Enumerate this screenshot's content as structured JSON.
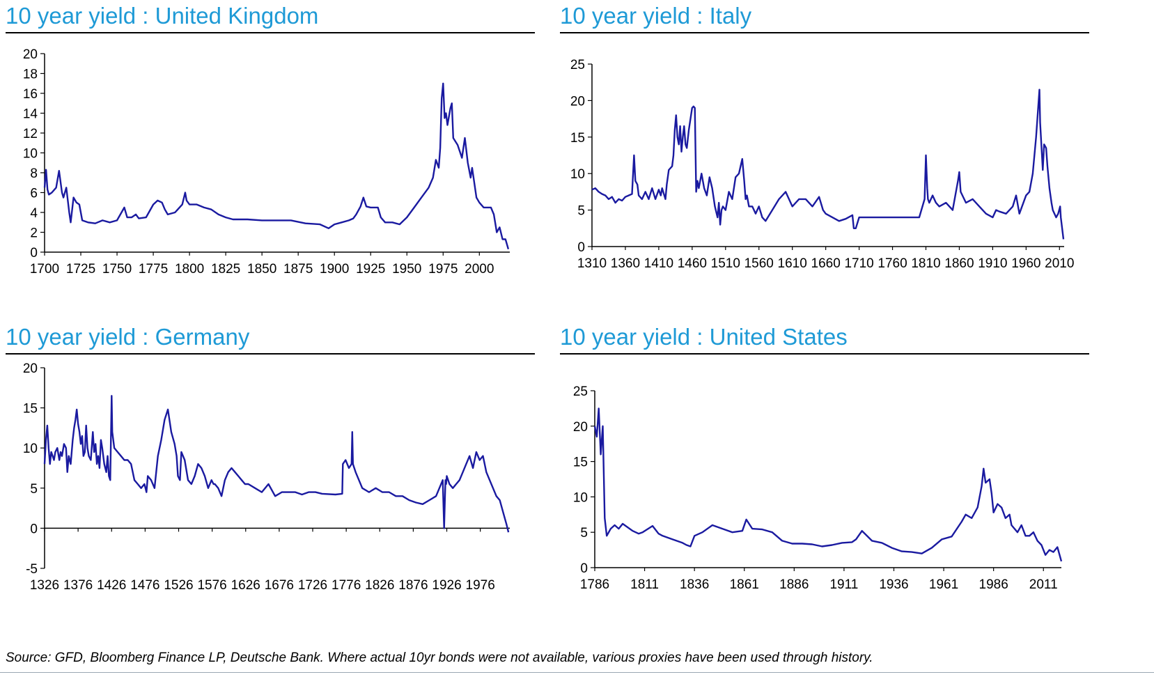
{
  "footer": {
    "source": "Source:  GFD, Bloomberg Finance LP, Deutsche Bank. Where actual 10yr bonds were not available, various proxies have been used through history."
  },
  "colors": {
    "title": "#1e9ad6",
    "line": "#1a1aa0",
    "axis": "#000000"
  },
  "chart_data": [
    {
      "type": "line",
      "title": "10 year yield : United Kingdom",
      "xlabel": "",
      "ylabel": "",
      "xlim": [
        1700,
        2021
      ],
      "ylim": [
        0,
        20
      ],
      "yticks": [
        0,
        2,
        4,
        6,
        8,
        10,
        12,
        14,
        16,
        18,
        20
      ],
      "xticks": [
        1700,
        1725,
        1750,
        1775,
        1800,
        1825,
        1850,
        1875,
        1900,
        1925,
        1950,
        1975,
        2000
      ],
      "xtick_labels": [
        "1700",
        "1725",
        "1750",
        "1775",
        "1800",
        "1825",
        "1850",
        "1875",
        "1900",
        "1925",
        "1950",
        "1975",
        "2000"
      ],
      "series": [
        {
          "x": [
            1700,
            1701,
            1702,
            1703,
            1705,
            1708,
            1710,
            1712,
            1713,
            1715,
            1717,
            1718,
            1720,
            1722,
            1724,
            1726,
            1730,
            1735,
            1740,
            1745,
            1750,
            1755,
            1757,
            1760,
            1763,
            1765,
            1770,
            1775,
            1778,
            1781,
            1783,
            1785,
            1790,
            1795,
            1797,
            1798,
            1800,
            1805,
            1810,
            1815,
            1820,
            1825,
            1830,
            1840,
            1850,
            1860,
            1870,
            1880,
            1890,
            1896,
            1900,
            1905,
            1910,
            1913,
            1915,
            1918,
            1920,
            1922,
            1925,
            1930,
            1932,
            1935,
            1940,
            1945,
            1950,
            1955,
            1960,
            1965,
            1968,
            1970,
            1972,
            1973,
            1974,
            1975,
            1976,
            1977,
            1978,
            1980,
            1981,
            1982,
            1985,
            1988,
            1990,
            1992,
            1994,
            1995,
            1998,
            2000,
            2003,
            2005,
            2008,
            2010,
            2012,
            2014,
            2016,
            2018,
            2020
          ],
          "y": [
            6.5,
            8.3,
            6.3,
            5.8,
            6.0,
            6.5,
            8.2,
            6.0,
            5.5,
            6.5,
            4.0,
            3.0,
            5.5,
            5.0,
            4.8,
            3.2,
            3.0,
            2.9,
            3.2,
            3.0,
            3.2,
            4.5,
            3.5,
            3.5,
            3.8,
            3.4,
            3.5,
            4.8,
            5.2,
            5.0,
            4.3,
            3.8,
            4.0,
            4.8,
            6.0,
            5.2,
            4.8,
            4.8,
            4.5,
            4.3,
            3.8,
            3.5,
            3.3,
            3.3,
            3.2,
            3.2,
            3.2,
            2.9,
            2.8,
            2.4,
            2.8,
            3.0,
            3.2,
            3.4,
            3.8,
            4.6,
            5.5,
            4.6,
            4.5,
            4.5,
            3.5,
            3.0,
            3.0,
            2.8,
            3.5,
            4.5,
            5.5,
            6.5,
            7.5,
            9.3,
            8.5,
            10.5,
            15.5,
            17.0,
            13.5,
            14.0,
            12.8,
            14.5,
            15.0,
            11.5,
            10.8,
            9.5,
            11.5,
            9.0,
            7.5,
            8.5,
            5.5,
            5.0,
            4.5,
            4.5,
            4.5,
            3.8,
            2.0,
            2.5,
            1.3,
            1.3,
            0.3
          ]
        }
      ]
    },
    {
      "type": "line",
      "title": "10 year yield : Italy",
      "xlabel": "",
      "ylabel": "",
      "xlim": [
        1310,
        2017
      ],
      "ylim": [
        0,
        25
      ],
      "yticks": [
        0,
        5,
        10,
        15,
        20,
        25
      ],
      "xticks": [
        1310,
        1360,
        1410,
        1460,
        1510,
        1560,
        1610,
        1660,
        1710,
        1760,
        1810,
        1860,
        1910,
        1960,
        2010
      ],
      "xtick_labels": [
        "1310",
        "1360",
        "1410",
        "1460",
        "1510",
        "1560",
        "1610",
        "1660",
        "1710",
        "1760",
        "1810",
        "1860",
        "1910",
        "1960",
        "2010"
      ],
      "series": [
        {
          "x": [
            1310,
            1315,
            1320,
            1325,
            1330,
            1335,
            1340,
            1345,
            1350,
            1355,
            1360,
            1365,
            1370,
            1373,
            1375,
            1378,
            1380,
            1385,
            1390,
            1395,
            1400,
            1405,
            1410,
            1413,
            1415,
            1420,
            1422,
            1425,
            1430,
            1432,
            1434,
            1436,
            1438,
            1440,
            1442,
            1444,
            1446,
            1448,
            1450,
            1452,
            1455,
            1460,
            1462,
            1464,
            1466,
            1468,
            1470,
            1474,
            1478,
            1482,
            1486,
            1490,
            1494,
            1498,
            1500,
            1502,
            1504,
            1506,
            1510,
            1515,
            1520,
            1525,
            1530,
            1535,
            1538,
            1540,
            1542,
            1545,
            1550,
            1555,
            1560,
            1565,
            1570,
            1580,
            1590,
            1600,
            1610,
            1620,
            1630,
            1640,
            1650,
            1656,
            1660,
            1670,
            1680,
            1690,
            1700,
            1702,
            1705,
            1710,
            1720,
            1760,
            1800,
            1808,
            1810,
            1812,
            1813,
            1815,
            1820,
            1825,
            1830,
            1840,
            1850,
            1858,
            1860,
            1862,
            1870,
            1880,
            1890,
            1900,
            1910,
            1915,
            1920,
            1930,
            1940,
            1945,
            1950,
            1960,
            1965,
            1970,
            1975,
            1980,
            1981,
            1985,
            1987,
            1990,
            1992,
            1995,
            1998,
            2000,
            2005,
            2008,
            2011,
            2012,
            2014,
            2016
          ],
          "y": [
            7.8,
            8.0,
            7.5,
            7.2,
            7.0,
            6.5,
            6.8,
            6.0,
            6.5,
            6.3,
            6.8,
            7.0,
            7.2,
            12.5,
            9.0,
            8.5,
            7.0,
            6.5,
            7.5,
            6.5,
            8.0,
            6.5,
            7.8,
            7.0,
            8.0,
            6.5,
            8.5,
            10.5,
            11.0,
            12.5,
            16.0,
            18.0,
            15.0,
            14.0,
            16.5,
            13.0,
            15.0,
            16.5,
            14.0,
            13.5,
            16.0,
            19.0,
            19.2,
            19.0,
            7.5,
            9.0,
            8.0,
            10.0,
            8.0,
            7.0,
            9.5,
            8.0,
            5.5,
            4.0,
            6.0,
            3.0,
            5.0,
            5.5,
            5.0,
            7.5,
            6.5,
            9.5,
            10.0,
            12.0,
            9.0,
            6.5,
            7.0,
            5.5,
            5.5,
            4.5,
            5.5,
            4.0,
            3.5,
            5.0,
            6.5,
            7.5,
            5.5,
            6.5,
            6.5,
            5.5,
            6.8,
            5.0,
            4.5,
            4.0,
            3.5,
            3.8,
            4.3,
            2.5,
            2.5,
            4.0,
            4.0,
            4.0,
            4.0,
            6.5,
            12.5,
            8.0,
            6.5,
            6.0,
            7.0,
            6.0,
            5.5,
            6.0,
            5.0,
            9.0,
            10.2,
            7.5,
            6.0,
            6.5,
            5.5,
            4.5,
            4.0,
            5.0,
            4.8,
            4.5,
            5.5,
            7.0,
            4.5,
            7.0,
            7.5,
            10.0,
            15.0,
            21.5,
            17.0,
            10.5,
            14.0,
            13.5,
            11.0,
            8.0,
            6.0,
            5.0,
            4.0,
            4.5,
            5.5,
            4.0,
            2.5,
            1.0
          ]
        }
      ]
    },
    {
      "type": "line",
      "title": "10 year yield : Germany",
      "xlabel": "",
      "ylabel": "",
      "xlim": [
        1326,
        2020
      ],
      "ylim": [
        -5,
        20
      ],
      "yticks": [
        -5,
        0,
        5,
        10,
        15,
        20
      ],
      "xticks": [
        1326,
        1376,
        1426,
        1476,
        1526,
        1576,
        1626,
        1676,
        1726,
        1776,
        1826,
        1876,
        1926,
        1976
      ],
      "xtick_labels": [
        "1326",
        "1376",
        "1426",
        "1476",
        "1526",
        "1576",
        "1626",
        "1676",
        "1726",
        "1776",
        "1826",
        "1876",
        "1926",
        "1976"
      ],
      "series": [
        {
          "x": [
            1326,
            1328,
            1330,
            1332,
            1334,
            1336,
            1338,
            1340,
            1342,
            1345,
            1348,
            1350,
            1352,
            1355,
            1358,
            1360,
            1362,
            1365,
            1368,
            1370,
            1372,
            1374,
            1376,
            1378,
            1380,
            1382,
            1384,
            1386,
            1388,
            1390,
            1392,
            1395,
            1398,
            1400,
            1402,
            1404,
            1406,
            1408,
            1410,
            1412,
            1415,
            1418,
            1420,
            1422,
            1424,
            1426,
            1427,
            1430,
            1435,
            1440,
            1445,
            1450,
            1455,
            1460,
            1465,
            1470,
            1475,
            1478,
            1480,
            1485,
            1490,
            1495,
            1500,
            1505,
            1510,
            1515,
            1520,
            1523,
            1525,
            1528,
            1530,
            1535,
            1540,
            1545,
            1550,
            1555,
            1560,
            1565,
            1570,
            1575,
            1578,
            1580,
            1585,
            1590,
            1595,
            1600,
            1605,
            1610,
            1615,
            1620,
            1625,
            1630,
            1640,
            1650,
            1660,
            1670,
            1680,
            1690,
            1700,
            1710,
            1720,
            1730,
            1740,
            1760,
            1770,
            1771,
            1775,
            1780,
            1784,
            1785,
            1786,
            1790,
            1800,
            1810,
            1820,
            1830,
            1840,
            1850,
            1860,
            1870,
            1880,
            1890,
            1900,
            1910,
            1920,
            1922,
            1924,
            1925,
            1926,
            1930,
            1935,
            1940,
            1945,
            1950,
            1955,
            1960,
            1965,
            1970,
            1975,
            1980,
            1985,
            1990,
            1995,
            2000,
            2005,
            2010,
            2015,
            2018
          ],
          "y": [
            8.0,
            11.0,
            12.8,
            10.0,
            8.0,
            9.5,
            9.0,
            8.5,
            9.5,
            10.0,
            8.5,
            9.5,
            9.0,
            10.5,
            10.0,
            7.0,
            9.0,
            8.0,
            11.0,
            12.5,
            13.5,
            14.8,
            13.0,
            12.0,
            10.5,
            11.5,
            9.0,
            9.5,
            12.8,
            10.0,
            9.0,
            8.5,
            12.0,
            9.5,
            10.5,
            8.0,
            9.0,
            7.5,
            11.0,
            10.0,
            8.0,
            7.0,
            9.0,
            6.5,
            6.0,
            16.5,
            12.0,
            10.0,
            9.5,
            9.0,
            8.5,
            8.5,
            8.0,
            6.0,
            5.5,
            5.0,
            5.5,
            4.5,
            6.5,
            6.0,
            5.0,
            9.0,
            11.0,
            13.5,
            14.8,
            12.0,
            10.5,
            9.0,
            6.5,
            6.0,
            9.5,
            8.5,
            6.0,
            5.5,
            6.5,
            8.0,
            7.5,
            6.5,
            5.0,
            6.0,
            5.5,
            5.5,
            5.0,
            4.0,
            6.0,
            7.0,
            7.5,
            7.0,
            6.5,
            6.0,
            5.5,
            5.5,
            5.0,
            4.5,
            5.5,
            4.0,
            4.5,
            4.5,
            4.5,
            4.2,
            4.5,
            4.5,
            4.3,
            4.2,
            4.3,
            8.0,
            8.5,
            7.5,
            8.0,
            12.0,
            8.0,
            7.0,
            5.0,
            4.5,
            5.0,
            4.5,
            4.5,
            4.0,
            4.0,
            3.5,
            3.2,
            3.0,
            3.5,
            4.0,
            6.0,
            0.0,
            6.0,
            5.5,
            6.5,
            5.5,
            5.0,
            5.5,
            6.0,
            7.0,
            8.0,
            9.0,
            7.5,
            9.5,
            8.5,
            9.0,
            7.0,
            6.0,
            5.0,
            4.0,
            3.5,
            2.0,
            0.5,
            -0.5
          ]
        }
      ]
    },
    {
      "type": "line",
      "title": "10 year yield : United States",
      "xlabel": "",
      "ylabel": "",
      "xlim": [
        1786,
        2020
      ],
      "ylim": [
        0,
        25
      ],
      "yticks": [
        0,
        5,
        10,
        15,
        20,
        25
      ],
      "xticks": [
        1786,
        1811,
        1836,
        1861,
        1886,
        1911,
        1936,
        1961,
        1986,
        2011
      ],
      "xtick_labels": [
        "1786",
        "1811",
        "1836",
        "1861",
        "1886",
        "1911",
        "1936",
        "1961",
        "1986",
        "2011"
      ],
      "series": [
        {
          "x": [
            1786,
            1787,
            1788,
            1789,
            1790,
            1791,
            1792,
            1794,
            1796,
            1798,
            1800,
            1805,
            1808,
            1810,
            1815,
            1818,
            1820,
            1825,
            1830,
            1832,
            1834,
            1836,
            1840,
            1845,
            1850,
            1855,
            1860,
            1862,
            1865,
            1870,
            1875,
            1880,
            1885,
            1890,
            1895,
            1900,
            1905,
            1910,
            1915,
            1917,
            1920,
            1925,
            1930,
            1935,
            1940,
            1945,
            1950,
            1955,
            1960,
            1965,
            1970,
            1972,
            1975,
            1978,
            1980,
            1981,
            1982,
            1984,
            1985,
            1986,
            1988,
            1990,
            1992,
            1994,
            1995,
            1998,
            2000,
            2002,
            2004,
            2006,
            2008,
            2010,
            2012,
            2014,
            2016,
            2018,
            2020
          ],
          "y": [
            20.0,
            18.5,
            22.5,
            16.0,
            20.0,
            7.0,
            4.5,
            5.5,
            6.0,
            5.5,
            6.2,
            5.2,
            4.8,
            5.0,
            5.9,
            4.8,
            4.5,
            4.0,
            3.5,
            3.2,
            3.0,
            4.5,
            5.0,
            6.0,
            5.5,
            5.0,
            5.2,
            6.8,
            5.5,
            5.4,
            5.0,
            3.8,
            3.4,
            3.4,
            3.3,
            3.0,
            3.2,
            3.5,
            3.6,
            4.0,
            5.2,
            3.8,
            3.5,
            2.8,
            2.3,
            2.2,
            2.0,
            2.8,
            4.0,
            4.4,
            6.5,
            7.5,
            7.0,
            8.5,
            11.5,
            14.0,
            12.0,
            12.5,
            10.5,
            7.8,
            9.0,
            8.5,
            7.0,
            7.5,
            6.0,
            5.0,
            6.0,
            4.5,
            4.5,
            5.0,
            3.8,
            3.2,
            1.8,
            2.5,
            2.2,
            2.9,
            0.9
          ]
        }
      ]
    }
  ]
}
